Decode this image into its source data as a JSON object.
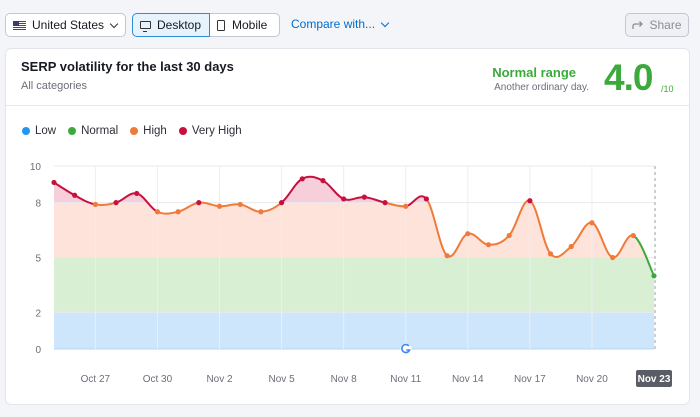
{
  "toolbar": {
    "country": "United States",
    "device_desktop": "Desktop",
    "device_mobile": "Mobile",
    "compare": "Compare with...",
    "share": "Share"
  },
  "card": {
    "title": "SERP volatility for the last 30 days",
    "subtitle": "All categories",
    "range_label": "Normal range",
    "range_sub": "Another ordinary day.",
    "score": "4.0",
    "score_den": "/10"
  },
  "colors": {
    "low": "#2196f3",
    "normal": "#3ba93b",
    "high": "#f07a3a",
    "very_high": "#c8103d",
    "band_low": "#cde6fb",
    "band_normal": "#d8efd4",
    "band_high": "#fde3d9",
    "band_very_high": "#f7cfdb"
  },
  "chart_data": {
    "type": "area",
    "legend": [
      "Low",
      "Normal",
      "High",
      "Very High"
    ],
    "legend_position": "top-left",
    "y_ticks": [
      "10",
      "8",
      "5",
      "2",
      "0"
    ],
    "ylim": [
      0,
      10
    ],
    "x_labels": [
      "Oct 27",
      "Oct 30",
      "Nov 2",
      "Nov 5",
      "Nov 8",
      "Nov 11",
      "Nov 14",
      "Nov 17",
      "Nov 20",
      "Nov 23"
    ],
    "selected_label": "Nov 23",
    "bands": [
      {
        "name": "Low",
        "from": 0,
        "to": 2
      },
      {
        "name": "Normal",
        "from": 2,
        "to": 5
      },
      {
        "name": "High",
        "from": 5,
        "to": 8
      },
      {
        "name": "Very High",
        "from": 8,
        "to": 10
      }
    ],
    "values": [
      9.1,
      8.4,
      7.9,
      8.0,
      8.5,
      7.5,
      7.5,
      8.0,
      7.8,
      7.9,
      7.5,
      8.0,
      9.3,
      9.2,
      8.2,
      8.3,
      8.0,
      7.8,
      8.2,
      5.1,
      6.3,
      5.7,
      6.2,
      8.1,
      5.2,
      5.6,
      6.9,
      5.0,
      6.2,
      4.0
    ],
    "annotation": "google-update-marker"
  }
}
